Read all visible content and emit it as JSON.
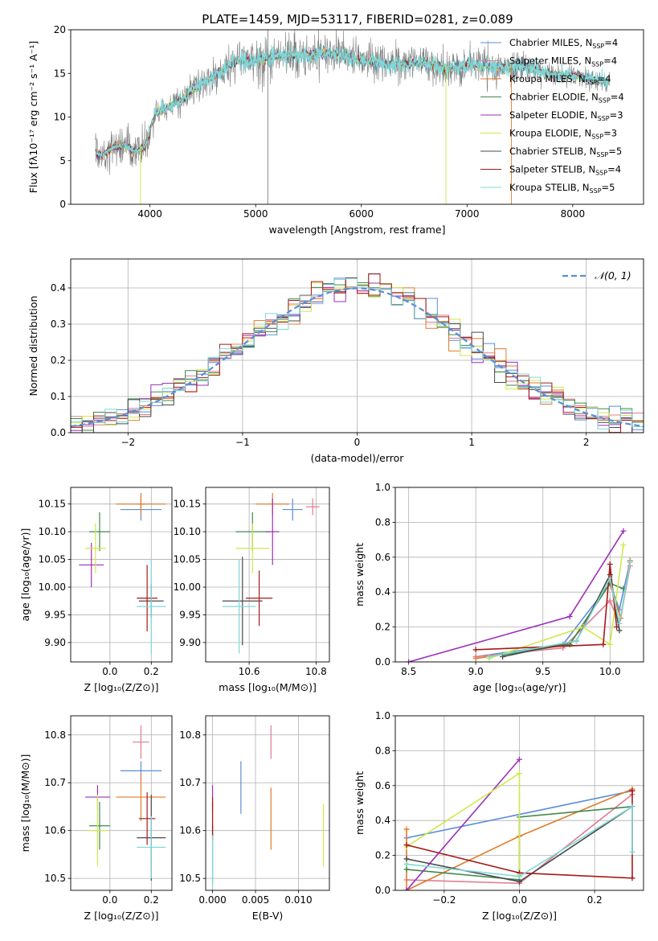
{
  "figure_title": "PLATE=1459, MJD=53117, FIBERID=0281, z=0.089",
  "models": [
    {
      "name": "Chabrier MILES",
      "nssp": "4",
      "color": "#5b8ed6"
    },
    {
      "name": "Salpeter MILES",
      "nssp": "4",
      "color": "#e07b91"
    },
    {
      "name": "Kroupa MILES",
      "nssp": "4",
      "color": "#e07b2a"
    },
    {
      "name": "Chabrier ELODIE",
      "nssp": "4",
      "color": "#3d8a4a"
    },
    {
      "name": "Salpeter ELODIE",
      "nssp": "3",
      "color": "#9b30b8"
    },
    {
      "name": "Kroupa ELODIE",
      "nssp": "3",
      "color": "#d0e84a"
    },
    {
      "name": "Chabrier STELIB",
      "nssp": "5",
      "color": "#4a4a4a"
    },
    {
      "name": "Salpeter STELIB",
      "nssp": "4",
      "color": "#a81818"
    },
    {
      "name": "Kroupa STELIB",
      "nssp": "5",
      "color": "#7ed8d8"
    }
  ],
  "chart_data": [
    {
      "id": "spectrum",
      "type": "line",
      "xlabel": "wavelength [Angstrom, rest frame]",
      "ylabel": "Flux [fλ10⁻¹⁷ erg cm⁻² s⁻¹ A⁻¹]",
      "xlim": [
        3250,
        8670
      ],
      "ylim": [
        0,
        20
      ],
      "xticks": [
        4000,
        5000,
        6000,
        7000,
        8000
      ],
      "yticks": [
        0,
        5,
        10,
        15,
        20
      ],
      "data_color": "#7f7f7f",
      "model_color": "#7ed8d8",
      "continuum": {
        "x": [
          3480,
          3550,
          3650,
          3750,
          3850,
          3950,
          4050,
          4150,
          4300,
          4450,
          4600,
          4800,
          5000,
          5200,
          5400,
          5600,
          5800,
          6000,
          6200,
          6400,
          6600,
          6800,
          7000,
          7200,
          7400,
          7600,
          7800,
          8000,
          8200,
          8350
        ],
        "y": [
          6,
          5.5,
          6.5,
          6.8,
          6,
          6.5,
          10.5,
          11,
          12,
          13.5,
          14.5,
          16.5,
          16.5,
          17,
          17,
          17.3,
          17.2,
          16.5,
          16.2,
          16,
          16.2,
          15.5,
          16,
          15.8,
          15.6,
          15.8,
          14.8,
          14.8,
          14.3,
          14
        ]
      },
      "legend": "top-right"
    },
    {
      "id": "residuals",
      "type": "step",
      "xlabel": "(data-model)/error",
      "ylabel": "Normed distribution",
      "xlim": [
        -2.5,
        2.5
      ],
      "ylim": [
        0,
        0.48
      ],
      "xticks": [
        -2,
        -1,
        0,
        1,
        2
      ],
      "yticks": [
        0.0,
        0.1,
        0.2,
        0.3,
        0.4
      ],
      "reference_label": "𝒩(0, 1)",
      "reference_color": "#5b8ed6",
      "legend": "top-right"
    },
    {
      "id": "age-vs-Z",
      "type": "errorbar",
      "xlabel": "Z [log₁₀(Z/Z⊙)]",
      "ylabel": "age  [log₁₀(age/yr)]",
      "xlim": [
        -0.19,
        0.3
      ],
      "ylim": [
        9.865,
        10.18
      ],
      "xticks": [
        0.0,
        0.2
      ],
      "yticks": [
        9.9,
        9.95,
        10.0,
        10.05,
        10.1,
        10.15
      ],
      "points": [
        {
          "model": 0,
          "x": 0.15,
          "y": 10.14,
          "xerr": 0.1,
          "yerr": 0.02
        },
        {
          "model": 1,
          "x": 0.15,
          "y": 10.15,
          "xerr": 0.02,
          "yerr": 0.015
        },
        {
          "model": 2,
          "x": 0.15,
          "y": 10.15,
          "xerr": 0.12,
          "yerr": 0.02
        },
        {
          "model": 3,
          "x": -0.05,
          "y": 10.1,
          "xerr": 0.05,
          "yerr": 0.035
        },
        {
          "model": 4,
          "x": -0.09,
          "y": 10.04,
          "xerr": 0.06,
          "yerr": 0.04
        },
        {
          "model": 5,
          "x": -0.07,
          "y": 10.07,
          "xerr": 0.05,
          "yerr": 0.045
        },
        {
          "model": 6,
          "x": 0.2,
          "y": 9.975,
          "xerr": 0.06,
          "yerr": 0.03
        },
        {
          "model": 7,
          "x": 0.18,
          "y": 9.98,
          "xerr": 0.05,
          "yerr": 0.06
        },
        {
          "model": 8,
          "x": 0.2,
          "y": 9.965,
          "xerr": 0.07,
          "yerr": 0.085
        }
      ]
    },
    {
      "id": "age-vs-mass",
      "type": "errorbar",
      "xlabel": "mass [log₁₀(M/M⊙)]",
      "ylabel": "",
      "xlim": [
        10.47,
        10.84
      ],
      "ylim": [
        9.865,
        10.18
      ],
      "xticks": [
        10.6,
        10.8
      ],
      "yticks": [
        9.9,
        9.95,
        10.0,
        10.05,
        10.1,
        10.15
      ],
      "points": [
        {
          "model": 0,
          "x": 10.73,
          "y": 10.14,
          "xerr": 0.03,
          "yerr": 0.02
        },
        {
          "model": 1,
          "x": 10.79,
          "y": 10.145,
          "xerr": 0.02,
          "yerr": 0.015
        },
        {
          "model": 2,
          "x": 10.67,
          "y": 10.15,
          "xerr": 0.05,
          "yerr": 0.02
        },
        {
          "model": 3,
          "x": 10.61,
          "y": 10.1,
          "xerr": 0.05,
          "yerr": 0.035
        },
        {
          "model": 4,
          "x": 10.67,
          "y": 10.1,
          "xerr": 0.02,
          "yerr": 0.06
        },
        {
          "model": 5,
          "x": 10.61,
          "y": 10.07,
          "xerr": 0.05,
          "yerr": 0.045
        },
        {
          "model": 6,
          "x": 10.58,
          "y": 9.975,
          "xerr": 0.06,
          "yerr": 0.08
        },
        {
          "model": 7,
          "x": 10.63,
          "y": 9.98,
          "xerr": 0.04,
          "yerr": 0.05
        },
        {
          "model": 8,
          "x": 10.57,
          "y": 9.965,
          "xerr": 0.05,
          "yerr": 0.085
        }
      ]
    },
    {
      "id": "massweight-vs-age",
      "type": "line",
      "xlabel": "age  [log₁₀(age/yr)]",
      "ylabel": "mass weight",
      "xlim": [
        8.4,
        10.25
      ],
      "ylim": [
        0,
        1
      ],
      "xticks": [
        8.5,
        9.0,
        9.5,
        10.0
      ],
      "yticks": [
        0.0,
        0.2,
        0.4,
        0.6,
        0.8,
        1.0
      ],
      "series": [
        {
          "model": 0,
          "x": [
            9.0,
            9.65,
            10.0,
            10.07,
            10.15
          ],
          "y": [
            0.03,
            0.1,
            0.45,
            0.3,
            0.58
          ]
        },
        {
          "model": 1,
          "x": [
            9.0,
            9.65,
            10.0,
            10.07,
            10.15
          ],
          "y": [
            0.03,
            0.08,
            0.35,
            0.22,
            0.55
          ]
        },
        {
          "model": 2,
          "x": [
            9.0,
            9.7,
            10.0,
            10.08,
            10.15
          ],
          "y": [
            0.02,
            0.1,
            0.45,
            0.25,
            0.58
          ]
        },
        {
          "model": 3,
          "x": [
            9.2,
            9.7,
            10.0,
            10.1
          ],
          "y": [
            0.04,
            0.1,
            0.45,
            0.42
          ]
        },
        {
          "model": 4,
          "x": [
            8.5,
            9.7,
            10.1
          ],
          "y": [
            0.0,
            0.26,
            0.75
          ]
        },
        {
          "model": 5,
          "x": [
            9.1,
            9.8,
            10.0,
            10.1
          ],
          "y": [
            0.02,
            0.2,
            0.1,
            0.67
          ]
        },
        {
          "model": 6,
          "x": [
            9.2,
            9.75,
            10.0,
            10.07
          ],
          "y": [
            0.03,
            0.12,
            0.5,
            0.18
          ]
        },
        {
          "model": 7,
          "x": [
            9.0,
            9.95,
            10.0,
            10.05
          ],
          "y": [
            0.07,
            0.1,
            0.56,
            0.2
          ]
        },
        {
          "model": 8,
          "x": [
            9.1,
            9.75,
            10.0,
            10.07,
            10.15
          ],
          "y": [
            0.03,
            0.12,
            0.48,
            0.22,
            0.57
          ]
        }
      ]
    },
    {
      "id": "mass-vs-Z",
      "type": "errorbar",
      "xlabel": "Z [log₁₀(Z/Z⊙)]",
      "ylabel": "mass [log₁₀(M/M⊙)]",
      "xlim": [
        -0.19,
        0.3
      ],
      "ylim": [
        10.475,
        10.84
      ],
      "xticks": [
        0.0,
        0.2
      ],
      "yticks": [
        10.5,
        10.6,
        10.7,
        10.8
      ],
      "points": [
        {
          "model": 0,
          "x": 0.15,
          "y": 10.725,
          "xerr": 0.1,
          "yerr": 0.02
        },
        {
          "model": 1,
          "x": 0.15,
          "y": 10.785,
          "xerr": 0.04,
          "yerr": 0.035
        },
        {
          "model": 2,
          "x": 0.15,
          "y": 10.67,
          "xerr": 0.12,
          "yerr": 0.05
        },
        {
          "model": 3,
          "x": -0.05,
          "y": 10.61,
          "xerr": 0.05,
          "yerr": 0.05
        },
        {
          "model": 4,
          "x": -0.06,
          "y": 10.67,
          "xerr": 0.06,
          "yerr": 0.025
        },
        {
          "model": 5,
          "x": -0.06,
          "y": 10.6,
          "xerr": 0.05,
          "yerr": 0.075
        },
        {
          "model": 6,
          "x": 0.2,
          "y": 10.585,
          "xerr": 0.07,
          "yerr": 0.09
        },
        {
          "model": 7,
          "x": 0.18,
          "y": 10.625,
          "xerr": 0.04,
          "yerr": 0.055
        },
        {
          "model": 8,
          "x": 0.2,
          "y": 10.565,
          "xerr": 0.07,
          "yerr": 0.065
        }
      ]
    },
    {
      "id": "mass-vs-EBV",
      "type": "errorbar",
      "xlabel": "E(B-V)",
      "ylabel": "",
      "xlim": [
        -0.0008,
        0.0136
      ],
      "ylim": [
        10.475,
        10.84
      ],
      "xticks": [
        0.0,
        0.005,
        0.01
      ],
      "yticks": [
        10.5,
        10.6,
        10.7,
        10.8
      ],
      "points": [
        {
          "model": 0,
          "x": 0.0033,
          "y": 10.69,
          "xerr": 0,
          "yerr": 0.055
        },
        {
          "model": 1,
          "x": 0.0068,
          "y": 10.785,
          "xerr": 0,
          "yerr": 0.035
        },
        {
          "model": 2,
          "x": 0.0068,
          "y": 10.625,
          "xerr": 0,
          "yerr": 0.065
        },
        {
          "model": 3,
          "x": 0.0,
          "y": 10.62,
          "xerr": 0,
          "yerr": 0.04
        },
        {
          "model": 4,
          "x": 0.0,
          "y": 10.67,
          "xerr": 0,
          "yerr": 0.025
        },
        {
          "model": 5,
          "x": 0.0129,
          "y": 10.59,
          "xerr": 0,
          "yerr": 0.065
        },
        {
          "model": 6,
          "x": 0.0,
          "y": 10.55,
          "xerr": 0,
          "yerr": 0.06
        },
        {
          "model": 7,
          "x": 0.0,
          "y": 10.63,
          "xerr": 0,
          "yerr": 0.04
        },
        {
          "model": 8,
          "x": 0.0,
          "y": 10.53,
          "xerr": 0,
          "yerr": 0.06
        }
      ]
    },
    {
      "id": "massweight-vs-Z",
      "type": "line",
      "xlabel": "Z [log₁₀(Z/Z⊙)]",
      "ylabel": "mass weight",
      "xlim": [
        -0.33,
        0.33
      ],
      "ylim": [
        0,
        1
      ],
      "xticks": [
        -0.2,
        0.0,
        0.2
      ],
      "yticks": [
        0.0,
        0.2,
        0.4,
        0.6,
        0.8,
        1.0
      ],
      "series": [
        {
          "model": 0,
          "x": [
            -0.3,
            0.3
          ],
          "y": [
            0.3,
            0.57
          ]
        },
        {
          "model": 1,
          "x": [
            -0.3,
            0.0,
            0.3
          ],
          "y": [
            0.06,
            0.04,
            0.55
          ]
        },
        {
          "model": 2,
          "x": [
            -0.3,
            -0.3,
            0.0,
            0.3
          ],
          "y": [
            0.35,
            0.0,
            0.31,
            0.58
          ]
        },
        {
          "model": 3,
          "x": [
            -0.3,
            0.0,
            0.0,
            0.3
          ],
          "y": [
            0.12,
            0.06,
            0.42,
            0.48
          ]
        },
        {
          "model": 4,
          "x": [
            -0.3,
            0.0
          ],
          "y": [
            0.0,
            0.75
          ]
        },
        {
          "model": 5,
          "x": [
            -0.3,
            0.0,
            0.0
          ],
          "y": [
            0.25,
            0.67,
            0.09
          ]
        },
        {
          "model": 6,
          "x": [
            -0.3,
            0.0,
            0.3
          ],
          "y": [
            0.18,
            0.05,
            0.48
          ]
        },
        {
          "model": 7,
          "x": [
            -0.3,
            0.0,
            0.3,
            0.3
          ],
          "y": [
            0.26,
            0.1,
            0.07,
            0.57
          ]
        },
        {
          "model": 8,
          "x": [
            -0.3,
            0.0,
            0.3,
            0.3
          ],
          "y": [
            0.15,
            0.08,
            0.48,
            0.22
          ]
        }
      ]
    }
  ]
}
